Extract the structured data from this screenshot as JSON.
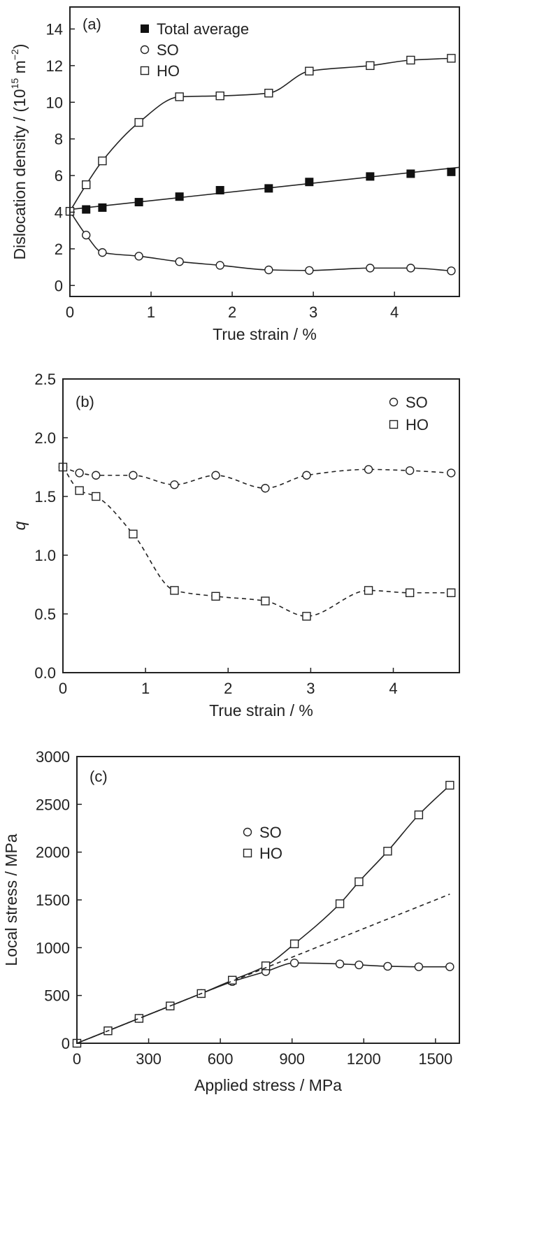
{
  "chart_data": [
    {
      "type": "line",
      "panel_label": "(a)",
      "xlabel": "True strain / %",
      "ylabel": "Dislocation density / (10",
      "ylabel_exp1": "15",
      "ylabel_mid": " m",
      "ylabel_exp2": "−2",
      "ylabel_end": ")",
      "xlim": [
        0,
        4.8
      ],
      "ylim": [
        -0.6,
        15.2
      ],
      "xticks": [
        "0",
        "1",
        "2",
        "3",
        "4"
      ],
      "yticks": [
        "0",
        "2",
        "4",
        "6",
        "8",
        "10",
        "12",
        "14"
      ],
      "legend_position": "top-left",
      "series": [
        {
          "name": "Total average",
          "marker": "filled-square",
          "line": "solid-linear-fit",
          "x": [
            0,
            0.2,
            0.4,
            0.85,
            1.35,
            1.85,
            2.45,
            2.95,
            3.7,
            4.2,
            4.7
          ],
          "y": [
            4.05,
            4.15,
            4.25,
            4.55,
            4.85,
            5.2,
            5.3,
            5.65,
            5.95,
            6.1,
            6.2
          ],
          "fit_line": {
            "x": [
              0,
              4.8
            ],
            "y": [
              4.15,
              6.45
            ]
          }
        },
        {
          "name": "SO",
          "marker": "open-circle",
          "line": "solid-smooth",
          "x": [
            0,
            0.2,
            0.4,
            0.85,
            1.35,
            1.85,
            2.45,
            2.95,
            3.7,
            4.2,
            4.7
          ],
          "y": [
            4.05,
            2.75,
            1.8,
            1.6,
            1.3,
            1.1,
            0.85,
            0.82,
            0.95,
            0.95,
            0.8
          ]
        },
        {
          "name": "HO",
          "marker": "open-square",
          "line": "solid-smooth",
          "x": [
            0,
            0.2,
            0.4,
            0.85,
            1.35,
            1.85,
            2.45,
            2.95,
            3.7,
            4.2,
            4.7
          ],
          "y": [
            4.05,
            5.5,
            6.8,
            8.9,
            10.3,
            10.35,
            10.5,
            11.7,
            12.0,
            12.3,
            12.4
          ]
        }
      ]
    },
    {
      "type": "line",
      "panel_label": "(b)",
      "xlabel": "True strain / %",
      "ylabel": "q",
      "xlim": [
        0,
        4.8
      ],
      "ylim": [
        0,
        2.5
      ],
      "xticks": [
        "0",
        "1",
        "2",
        "3",
        "4"
      ],
      "yticks": [
        "0.0",
        "0.5",
        "1.0",
        "1.5",
        "2.0",
        "2.5"
      ],
      "legend_position": "top-right",
      "series": [
        {
          "name": "SO",
          "marker": "open-circle",
          "line": "dashed-smooth",
          "x": [
            0,
            0.2,
            0.4,
            0.85,
            1.35,
            1.85,
            2.45,
            2.95,
            3.7,
            4.2,
            4.7
          ],
          "y": [
            1.75,
            1.7,
            1.68,
            1.68,
            1.6,
            1.68,
            1.57,
            1.68,
            1.73,
            1.72,
            1.7
          ]
        },
        {
          "name": "HO",
          "marker": "open-square",
          "line": "dashed-smooth",
          "x": [
            0,
            0.2,
            0.4,
            0.85,
            1.35,
            1.85,
            2.45,
            2.95,
            3.7,
            4.2,
            4.7
          ],
          "y": [
            1.75,
            1.55,
            1.5,
            1.18,
            0.7,
            0.65,
            0.61,
            0.48,
            0.7,
            0.68,
            0.68
          ]
        }
      ]
    },
    {
      "type": "line",
      "panel_label": "(c)",
      "xlabel": "Applied stress / MPa",
      "ylabel": "Local stress / MPa",
      "xlim": [
        0,
        1600
      ],
      "ylim": [
        0,
        3000
      ],
      "xticks": [
        "0",
        "300",
        "600",
        "900",
        "1200",
        "1500"
      ],
      "yticks": [
        "0",
        "500",
        "1000",
        "1500",
        "2000",
        "2500",
        "3000"
      ],
      "legend_position": "center",
      "series": [
        {
          "name": "SO",
          "marker": "open-circle",
          "line": "solid-smooth",
          "x": [
            0,
            130,
            260,
            390,
            520,
            650,
            790,
            910,
            1100,
            1180,
            1300,
            1430,
            1560
          ],
          "y": [
            0,
            130,
            260,
            390,
            520,
            645,
            750,
            840,
            830,
            820,
            805,
            800,
            800
          ]
        },
        {
          "name": "HO",
          "marker": "open-square",
          "line": "solid-smooth",
          "x": [
            0,
            130,
            260,
            390,
            520,
            650,
            790,
            910,
            1100,
            1180,
            1300,
            1430,
            1560
          ],
          "y": [
            0,
            130,
            260,
            390,
            520,
            660,
            810,
            1040,
            1460,
            1690,
            2010,
            2390,
            2700
          ]
        },
        {
          "line": "dashed-linear",
          "x": [
            0,
            1560
          ],
          "y": [
            0,
            1560
          ]
        }
      ]
    }
  ]
}
